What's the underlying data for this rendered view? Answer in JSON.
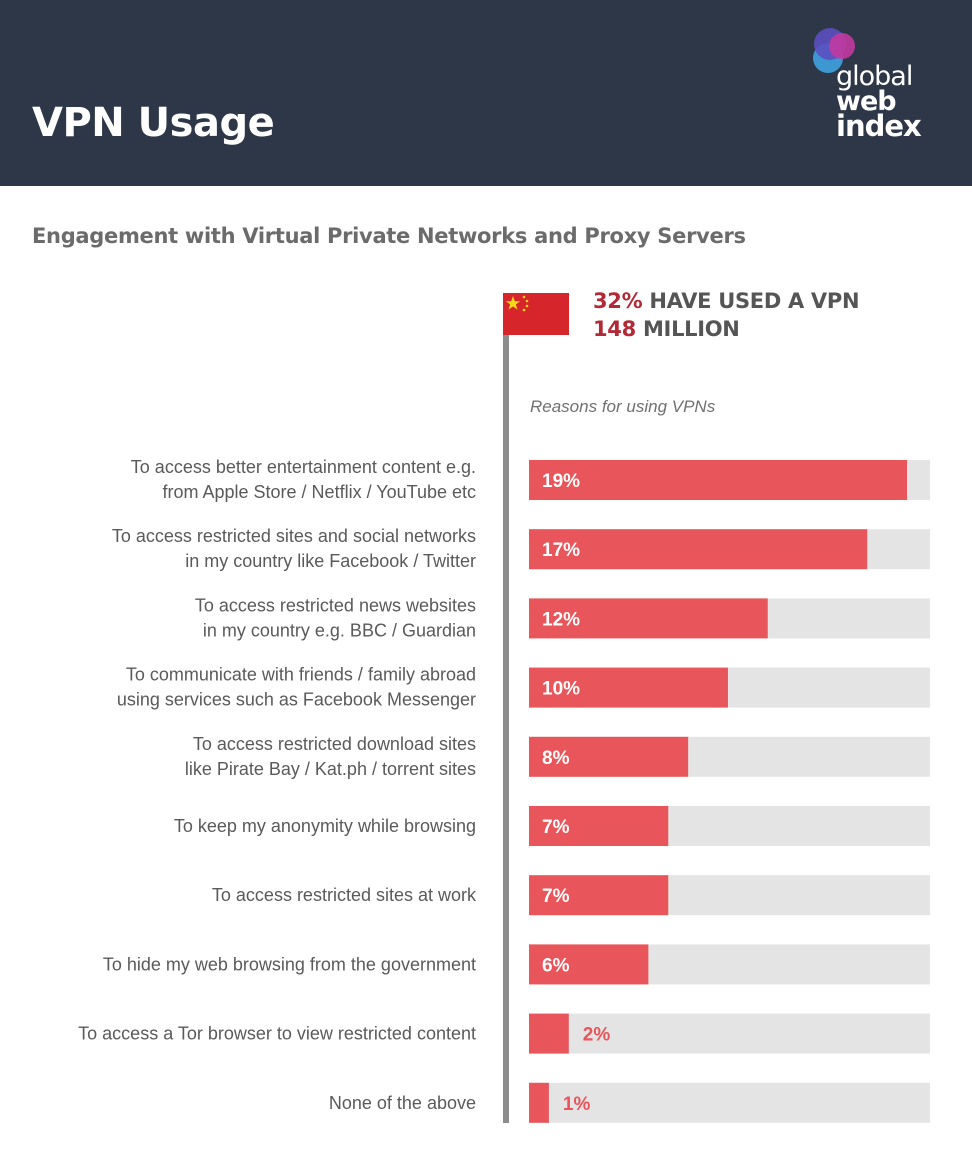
{
  "header": {
    "title": "VPN Usage",
    "logo": {
      "line1": "global",
      "line2": "web",
      "line3": "index"
    }
  },
  "subtitle": "Engagement with Virtual Private Networks and Proxy Servers",
  "stats": {
    "used_vpn_pct": "32%",
    "used_vpn_text": "HAVE USED A VPN",
    "users_count": "148",
    "users_unit": "MILLION"
  },
  "reasons_heading": "Reasons for using VPNs",
  "colors": {
    "header_bg": "#2d3748",
    "bar": "#e8555a",
    "track": "#e4e4e4",
    "accent": "#b22a36"
  },
  "chart_data": {
    "type": "bar",
    "orientation": "horizontal",
    "categories": [
      [
        "To access better entertainment content e.g.",
        "from Apple Store / Netflix / YouTube etc"
      ],
      [
        "To access restricted sites and social networks",
        "in my country like Facebook / Twitter"
      ],
      [
        "To access restricted news websites",
        "in my country e.g. BBC / Guardian"
      ],
      [
        "To communicate with friends / family abroad",
        "using services such as Facebook Messenger"
      ],
      [
        "To access restricted download sites",
        "like Pirate Bay / Kat.ph / torrent sites"
      ],
      [
        "To keep my anonymity while browsing"
      ],
      [
        "To access restricted sites at work"
      ],
      [
        "To hide my web browsing from the government"
      ],
      [
        "To access a Tor browser to view restricted content"
      ],
      [
        "None of the above"
      ]
    ],
    "values": [
      19,
      17,
      12,
      10,
      8,
      7,
      7,
      6,
      2,
      1
    ],
    "value_labels": [
      "19%",
      "17%",
      "12%",
      "10%",
      "8%",
      "7%",
      "7%",
      "6%",
      "2%",
      "1%"
    ],
    "xlim": [
      0,
      20
    ],
    "grid": false,
    "legend": "none"
  }
}
